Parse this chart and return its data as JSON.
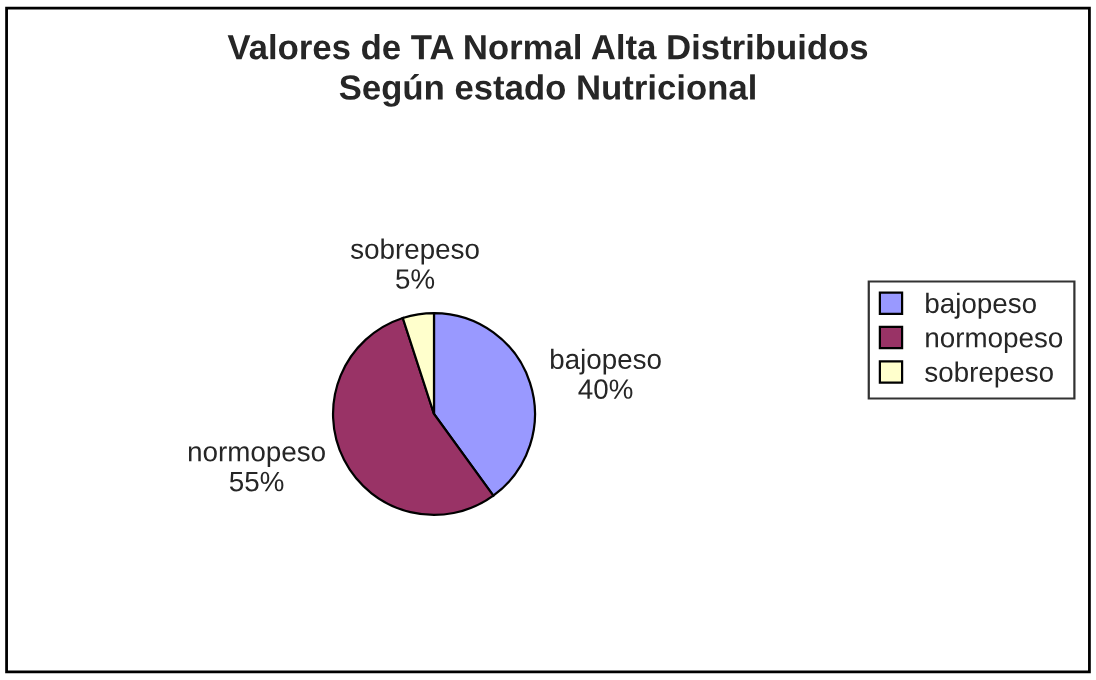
{
  "chart_data": {
    "type": "pie",
    "title": "Valores de TA Normal Alta Distribuidos\nSegún estado Nutricional",
    "categories": [
      "bajopeso",
      "normopeso",
      "sobrepeso"
    ],
    "values": [
      40,
      55,
      5
    ],
    "colors": [
      "#9999ff",
      "#993366",
      "#ffffcc"
    ],
    "value_labels": [
      "40%",
      "55%",
      "5%"
    ],
    "legend": "right"
  }
}
